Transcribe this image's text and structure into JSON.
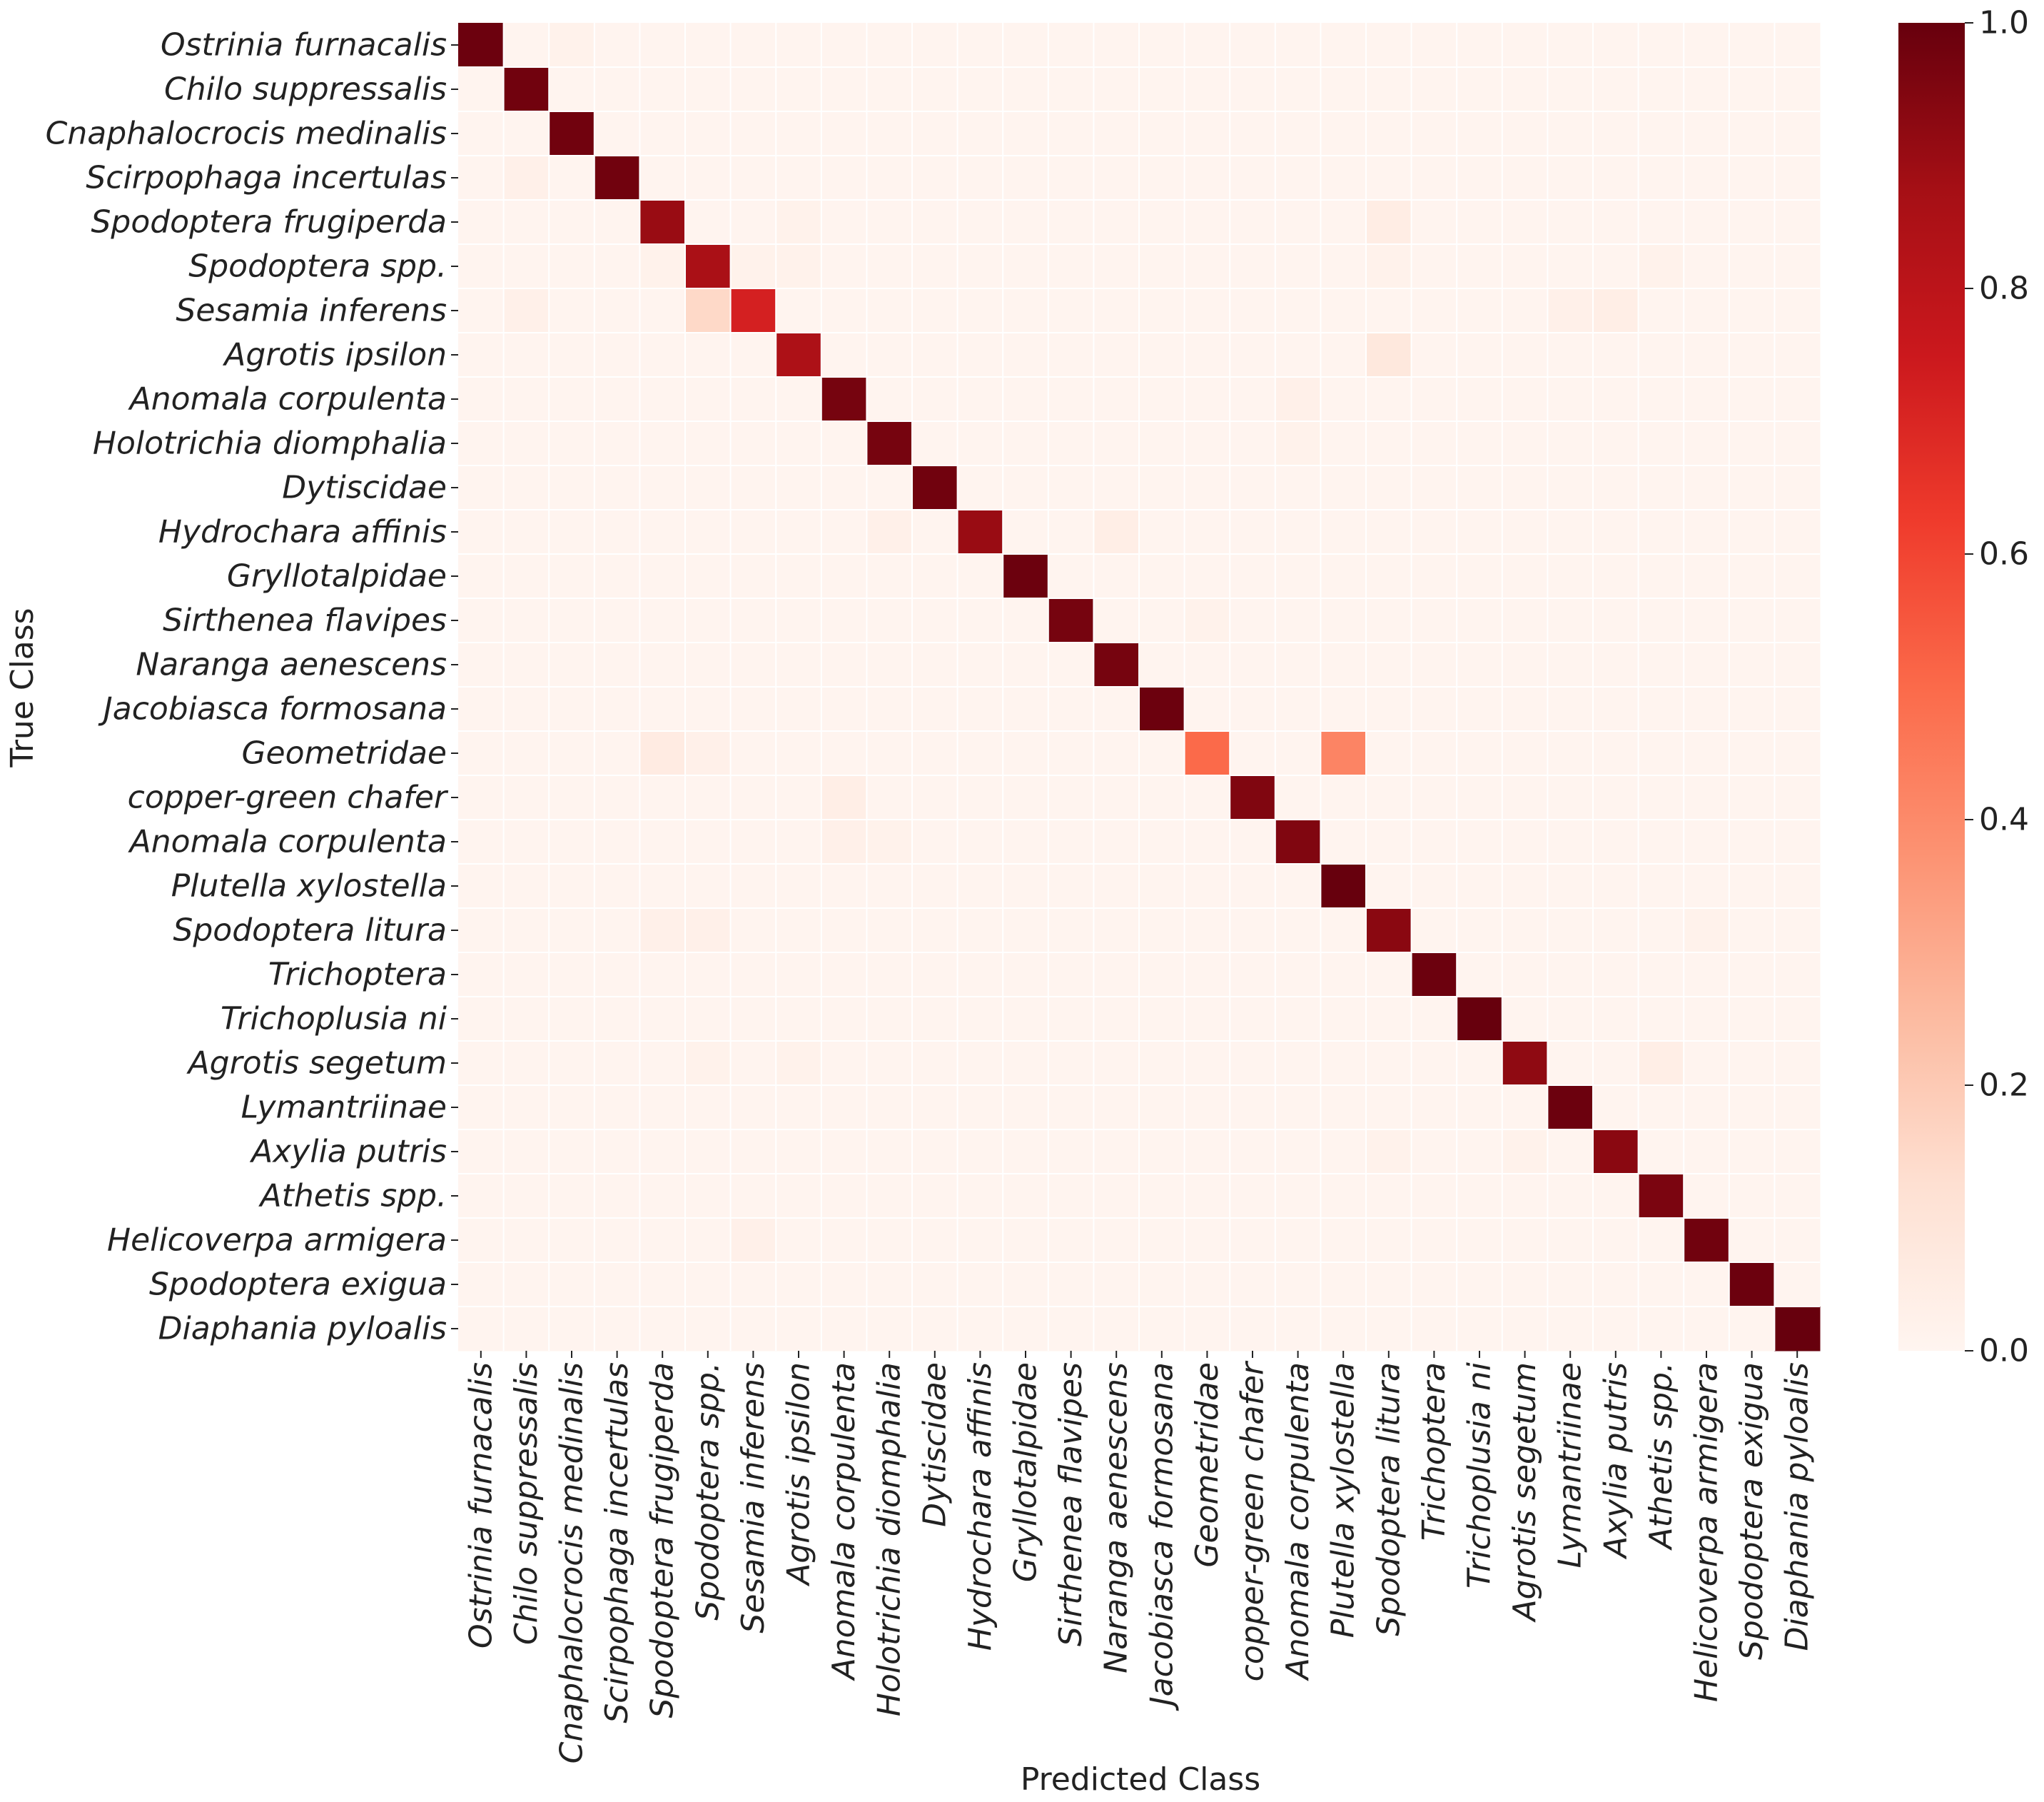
{
  "chart_data": {
    "type": "heatmap",
    "title": "",
    "xlabel": "Predicted Class",
    "ylabel": "True Class",
    "row_labels": [
      "Ostrinia furnacalis",
      "Chilo suppressalis",
      "Cnaphalocrocis medinalis",
      "Scirpophaga incertulas",
      "Spodoptera frugiperda",
      "Spodoptera spp.",
      "Sesamia inferens",
      "Agrotis ipsilon",
      "Anomala corpulenta",
      "Holotrichia diomphalia",
      "Dytiscidae",
      "Hydrochara affinis",
      "Gryllotalpidae",
      "Sirthenea flavipes",
      "Naranga aenescens",
      "Jacobiasca formosana",
      "Geometridae",
      "copper-green chafer",
      "Anomala corpulenta",
      "Plutella xylostella",
      "Spodoptera litura",
      "Trichoptera",
      "Trichoplusia ni",
      "Agrotis segetum",
      "Lymantriinae",
      "Axylia putris",
      "Athetis spp.",
      "Helicoverpa armigera",
      "Spodoptera exigua",
      "Diaphania pyloalis"
    ],
    "col_labels": [
      "Ostrinia furnacalis",
      "Chilo suppressalis",
      "Cnaphalocrocis medinalis",
      "Scirpophaga incertulas",
      "Spodoptera frugiperda",
      "Spodoptera spp.",
      "Sesamia inferens",
      "Agrotis ipsilon",
      "Anomala corpulenta",
      "Holotrichia diomphalia",
      "Dytiscidae",
      "Hydrochara affinis",
      "Gryllotalpidae",
      "Sirthenea flavipes",
      "Naranga aenescens",
      "Jacobiasca formosana",
      "Geometridae",
      "copper-green chafer",
      "Anomala corpulenta",
      "Plutella xylostella",
      "Spodoptera litura",
      "Trichoptera",
      "Trichoplusia ni",
      "Agrotis segetum",
      "Lymantriinae",
      "Axylia putris",
      "Athetis spp.",
      "Helicoverpa armigera",
      "Spodoptera exigua",
      "Diaphania pyloalis"
    ],
    "diagonal": [
      0.99,
      0.98,
      0.98,
      0.98,
      0.9,
      0.86,
      0.72,
      0.85,
      0.97,
      0.97,
      0.98,
      0.9,
      0.99,
      0.97,
      0.97,
      0.99,
      0.5,
      0.95,
      0.95,
      1.0,
      0.93,
      0.99,
      1.0,
      0.92,
      0.99,
      0.93,
      0.96,
      0.98,
      0.99,
      1.0
    ],
    "off_diagonal": [
      {
        "row": 0,
        "col": 2,
        "value": 0.02
      },
      {
        "row": 3,
        "col": 1,
        "value": 0.03
      },
      {
        "row": 4,
        "col": 20,
        "value": 0.05
      },
      {
        "row": 4,
        "col": 7,
        "value": 0.02
      },
      {
        "row": 5,
        "col": 4,
        "value": 0.02
      },
      {
        "row": 5,
        "col": 6,
        "value": 0.02
      },
      {
        "row": 5,
        "col": 7,
        "value": 0.02
      },
      {
        "row": 5,
        "col": 20,
        "value": 0.02
      },
      {
        "row": 5,
        "col": 26,
        "value": 0.02
      },
      {
        "row": 6,
        "col": 5,
        "value": 0.15
      },
      {
        "row": 6,
        "col": 1,
        "value": 0.03
      },
      {
        "row": 6,
        "col": 24,
        "value": 0.03
      },
      {
        "row": 6,
        "col": 25,
        "value": 0.04
      },
      {
        "row": 7,
        "col": 20,
        "value": 0.08
      },
      {
        "row": 8,
        "col": 18,
        "value": 0.03
      },
      {
        "row": 9,
        "col": 18,
        "value": 0.02
      },
      {
        "row": 11,
        "col": 9,
        "value": 0.03
      },
      {
        "row": 11,
        "col": 14,
        "value": 0.04
      },
      {
        "row": 13,
        "col": 16,
        "value": 0.02
      },
      {
        "row": 16,
        "col": 4,
        "value": 0.06
      },
      {
        "row": 16,
        "col": 5,
        "value": 0.03
      },
      {
        "row": 16,
        "col": 19,
        "value": 0.42
      },
      {
        "row": 17,
        "col": 8,
        "value": 0.04
      },
      {
        "row": 18,
        "col": 8,
        "value": 0.03
      },
      {
        "row": 18,
        "col": 9,
        "value": 0.02
      },
      {
        "row": 20,
        "col": 4,
        "value": 0.03
      },
      {
        "row": 20,
        "col": 5,
        "value": 0.03
      },
      {
        "row": 20,
        "col": 27,
        "value": 0.02
      },
      {
        "row": 23,
        "col": 5,
        "value": 0.02
      },
      {
        "row": 23,
        "col": 7,
        "value": 0.02
      },
      {
        "row": 23,
        "col": 26,
        "value": 0.04
      },
      {
        "row": 25,
        "col": 20,
        "value": 0.02
      },
      {
        "row": 25,
        "col": 23,
        "value": 0.02
      },
      {
        "row": 27,
        "col": 6,
        "value": 0.03
      }
    ],
    "baseline": 0.005,
    "value_range": [
      0.0,
      1.0
    ],
    "colorbar": {
      "colormap": "Reds",
      "ticks": [
        "0.0",
        "0.2",
        "0.4",
        "0.6",
        "0.8",
        "1.0"
      ],
      "tick_values": [
        0.0,
        0.2,
        0.4,
        0.6,
        0.8,
        1.0
      ],
      "placement": "right"
    },
    "colors": {
      "low": "#fff5f0",
      "high": "#67000d",
      "gridline": "#ffffff",
      "text": "#222222"
    }
  }
}
